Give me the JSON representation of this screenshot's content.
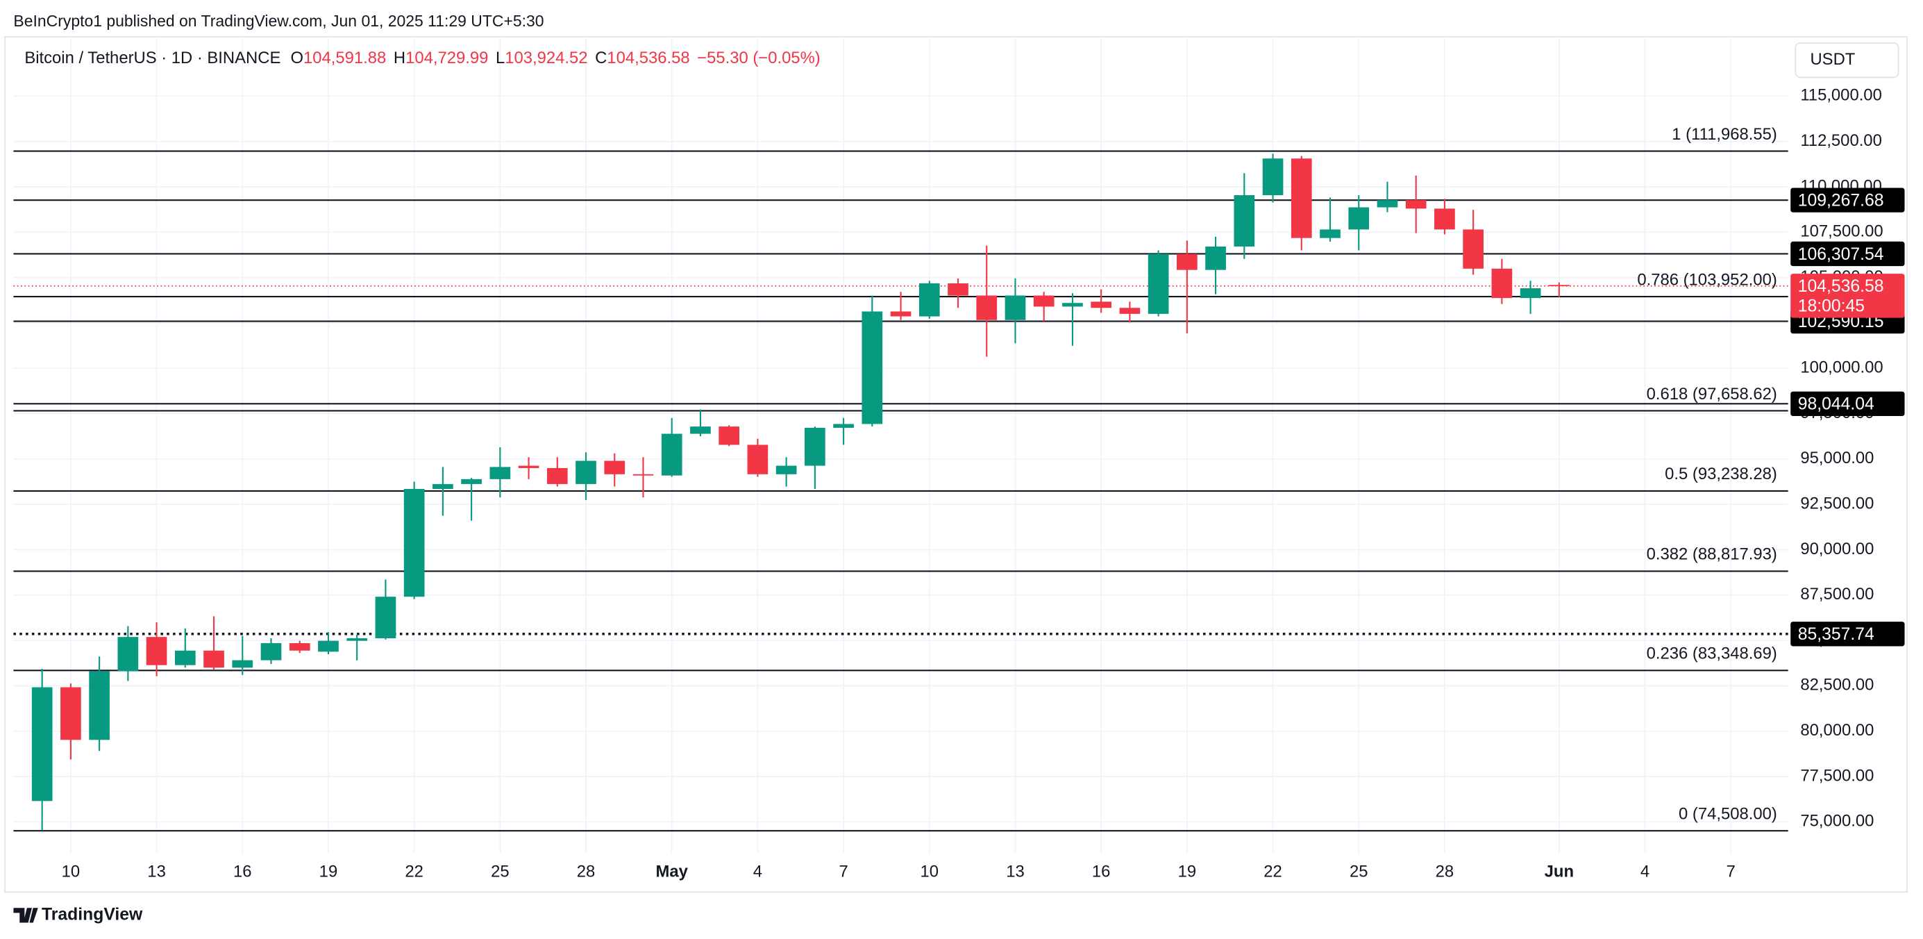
{
  "chart_data": {
    "type": "candlestick",
    "publisher_note": "BeInCrypto1 published on TradingView.com, Jun 01, 2025 11:29 UTC+5:30",
    "title": "Bitcoin / TetherUS · 1D · BINANCE",
    "ohlc_header": [
      {
        "key": "O",
        "value": "104,591.88"
      },
      {
        "key": "H",
        "value": "104,729.99"
      },
      {
        "key": "L",
        "value": "103,924.52"
      },
      {
        "key": "C",
        "value": "104,536.58"
      }
    ],
    "change": "−55.30 (−0.05%)",
    "currency": "USDT",
    "brand": "TradingView",
    "up_color": "#089981",
    "down_color": "#f23645",
    "grid": true,
    "x": [
      "2025-04-09",
      "2025-04-10",
      "2025-04-11",
      "2025-04-12",
      "2025-04-13",
      "2025-04-14",
      "2025-04-15",
      "2025-04-16",
      "2025-04-17",
      "2025-04-18",
      "2025-04-19",
      "2025-04-20",
      "2025-04-21",
      "2025-04-22",
      "2025-04-23",
      "2025-04-24",
      "2025-04-25",
      "2025-04-26",
      "2025-04-27",
      "2025-04-28",
      "2025-04-29",
      "2025-04-30",
      "2025-05-01",
      "2025-05-02",
      "2025-05-03",
      "2025-05-04",
      "2025-05-05",
      "2025-05-06",
      "2025-05-07",
      "2025-05-08",
      "2025-05-09",
      "2025-05-10",
      "2025-05-11",
      "2025-05-12",
      "2025-05-13",
      "2025-05-14",
      "2025-05-15",
      "2025-05-16",
      "2025-05-17",
      "2025-05-18",
      "2025-05-19",
      "2025-05-20",
      "2025-05-21",
      "2025-05-22",
      "2025-05-23",
      "2025-05-24",
      "2025-05-25",
      "2025-05-26",
      "2025-05-27",
      "2025-05-28",
      "2025-05-29",
      "2025-05-30",
      "2025-05-31",
      "2025-06-01"
    ],
    "open": [
      76150,
      82420,
      79520,
      83300,
      85190,
      83640,
      84440,
      83500,
      83910,
      84850,
      84380,
      84980,
      85120,
      87410,
      93350,
      93620,
      93890,
      94630,
      94500,
      93620,
      94900,
      94160,
      94090,
      96390,
      96790,
      95780,
      94160,
      94630,
      96720,
      96930,
      103130,
      102860,
      104680,
      104010,
      102660,
      104010,
      103400,
      103670,
      103330,
      103000,
      106300,
      105420,
      106710,
      109540,
      111560,
      107180,
      107650,
      108870,
      109270,
      108800,
      107650,
      105490,
      103870,
      104591.88
    ],
    "high": [
      83430,
      82620,
      84110,
      85790,
      86000,
      85660,
      86330,
      85250,
      85120,
      84980,
      85460,
      85320,
      88360,
      93750,
      94560,
      93960,
      95640,
      95100,
      95100,
      95370,
      95310,
      95100,
      97260,
      97730,
      96860,
      96120,
      95100,
      96790,
      97260,
      104010,
      104210,
      104820,
      104950,
      106760,
      104950,
      104210,
      104140,
      104350,
      103670,
      106500,
      107040,
      107250,
      110750,
      111830,
      111700,
      109410,
      109540,
      110280,
      110620,
      109340,
      108730,
      106030,
      104820,
      104729.99
    ],
    "low": [
      74530,
      78440,
      78910,
      82760,
      83030,
      83500,
      83370,
      83100,
      83700,
      84310,
      84240,
      83900,
      85050,
      87280,
      91870,
      91600,
      92880,
      93890,
      93480,
      92740,
      93480,
      92880,
      94020,
      96250,
      95710,
      94020,
      93480,
      93350,
      95780,
      96790,
      102660,
      102730,
      103330,
      100640,
      101380,
      102590,
      101240,
      103060,
      102520,
      102860,
      101920,
      104080,
      106030,
      109140,
      106500,
      106980,
      106500,
      108600,
      107450,
      107380,
      105160,
      103540,
      103000,
      103924.52
    ],
    "close": [
      82420,
      79520,
      83300,
      85190,
      83640,
      84440,
      83500,
      83910,
      84850,
      84440,
      84980,
      85120,
      87410,
      93350,
      93620,
      93890,
      94560,
      94500,
      93620,
      94900,
      94160,
      94090,
      96390,
      96790,
      95780,
      94160,
      94630,
      96720,
      96930,
      103130,
      102860,
      104680,
      104010,
      102660,
      104010,
      103400,
      103600,
      103330,
      103000,
      106300,
      105420,
      106710,
      109540,
      111560,
      107180,
      107650,
      108870,
      109270,
      108800,
      107650,
      105490,
      103870,
      104410,
      104536.58
    ],
    "xlim": [
      "2025-04-08",
      "2025-06-09"
    ],
    "xticks": [
      {
        "value": "2025-04-10",
        "label": "10"
      },
      {
        "value": "2025-04-13",
        "label": "13"
      },
      {
        "value": "2025-04-16",
        "label": "16"
      },
      {
        "value": "2025-04-19",
        "label": "19"
      },
      {
        "value": "2025-04-22",
        "label": "22"
      },
      {
        "value": "2025-04-25",
        "label": "25"
      },
      {
        "value": "2025-04-28",
        "label": "28"
      },
      {
        "value": "2025-05-01",
        "label": "May"
      },
      {
        "value": "2025-05-04",
        "label": "4"
      },
      {
        "value": "2025-05-07",
        "label": "7"
      },
      {
        "value": "2025-05-10",
        "label": "10"
      },
      {
        "value": "2025-05-13",
        "label": "13"
      },
      {
        "value": "2025-05-16",
        "label": "16"
      },
      {
        "value": "2025-05-19",
        "label": "19"
      },
      {
        "value": "2025-05-22",
        "label": "22"
      },
      {
        "value": "2025-05-25",
        "label": "25"
      },
      {
        "value": "2025-05-28",
        "label": "28"
      },
      {
        "value": "2025-06-01",
        "label": "Jun"
      },
      {
        "value": "2025-06-04",
        "label": "4"
      },
      {
        "value": "2025-06-07",
        "label": "7"
      }
    ],
    "ylim": [
      73300,
      118200
    ],
    "yticks": [
      {
        "value": 75000,
        "label": "75,000.00"
      },
      {
        "value": 77500,
        "label": "77,500.00"
      },
      {
        "value": 80000,
        "label": "80,000.00"
      },
      {
        "value": 82500,
        "label": "82,500.00"
      },
      {
        "value": 85000,
        "label": "85,000.00"
      },
      {
        "value": 87500,
        "label": "87,500.00"
      },
      {
        "value": 90000,
        "label": "90,000.00"
      },
      {
        "value": 92500,
        "label": "92,500.00"
      },
      {
        "value": 95000,
        "label": "95,000.00"
      },
      {
        "value": 97500,
        "label": "97,500.00"
      },
      {
        "value": 100000,
        "label": "100,000.00"
      },
      {
        "value": 102500,
        "label": "102,500.00"
      },
      {
        "value": 105000,
        "label": "105,000.00"
      },
      {
        "value": 107500,
        "label": "107,500.00"
      },
      {
        "value": 110000,
        "label": "110,000.00"
      },
      {
        "value": 112500,
        "label": "112,500.00"
      },
      {
        "value": 115000,
        "label": "115,000.00"
      }
    ],
    "fib_levels": [
      {
        "value": 111968.55,
        "label": "1 (111,968.55)"
      },
      {
        "value": 103952.0,
        "label": "0.786 (103,952.00)"
      },
      {
        "value": 97658.62,
        "label": "0.618 (97,658.62)"
      },
      {
        "value": 93238.28,
        "label": "0.5 (93,238.28)"
      },
      {
        "value": 88817.93,
        "label": "0.382 (88,817.93)"
      },
      {
        "value": 83348.69,
        "label": "0.236 (83,348.69)"
      },
      {
        "value": 74508.0,
        "label": "0 (74,508.00)"
      }
    ],
    "levels": [
      {
        "value": 109267.68,
        "label": "109,267.68"
      },
      {
        "value": 106307.54,
        "label": "106,307.54"
      },
      {
        "value": 102590.15,
        "label": "102,590.15"
      },
      {
        "value": 98044.04,
        "label": "98,044.04"
      },
      {
        "value": 85357.74,
        "label": "85,357.74",
        "style": "dotted"
      }
    ],
    "last_price": {
      "value": 104536.58,
      "label": "104,536.58",
      "countdown": "18:00:45",
      "color": "#f23645"
    }
  }
}
